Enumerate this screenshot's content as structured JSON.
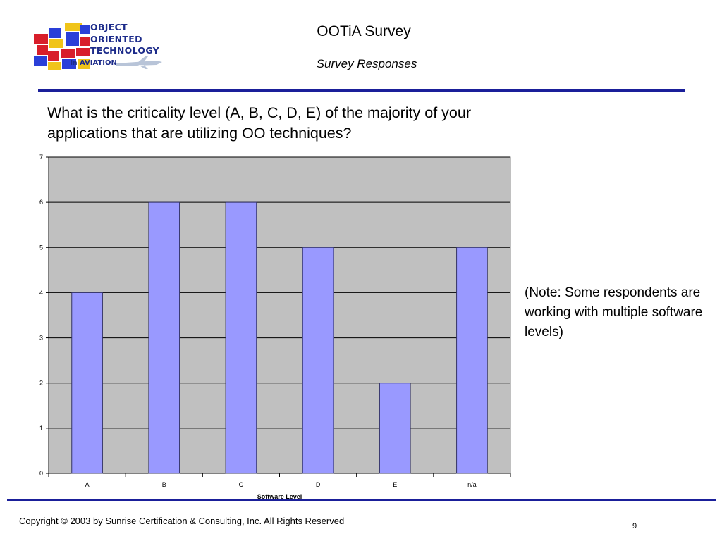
{
  "header": {
    "logo_lines": [
      "OBJECT",
      "ORIENTED",
      "TECHNOLOGY"
    ],
    "logo_sub_small": "in",
    "logo_sub": "AVIATION",
    "title": "OOTiA Survey",
    "subtitle": "Survey Responses"
  },
  "question": "What is the criticality level (A, B, C, D, E) of the majority of your applications that are utilizing OO techniques?",
  "note": "(Note: Some respondents are working with multiple software levels)",
  "footer": {
    "copyright": "Copyright © 2003 by Sunrise Certification & Consulting, Inc.  All Rights Reserved",
    "page_number": "9"
  },
  "colors": {
    "plot_background": "#c0c0c0",
    "bar_fill": "#9999ff",
    "bar_stroke": "#333366",
    "rule": "#1a1f9a"
  },
  "chart_data": {
    "type": "bar",
    "categories": [
      "A",
      "B",
      "C",
      "D",
      "E",
      "n/a"
    ],
    "values": [
      4,
      6,
      6,
      5,
      2,
      5
    ],
    "title": "",
    "xlabel": "Software Level",
    "ylabel": "",
    "ylim": [
      0,
      7
    ],
    "yticks": [
      0,
      1,
      2,
      3,
      4,
      5,
      6,
      7
    ],
    "grid": true,
    "legend": "none"
  }
}
